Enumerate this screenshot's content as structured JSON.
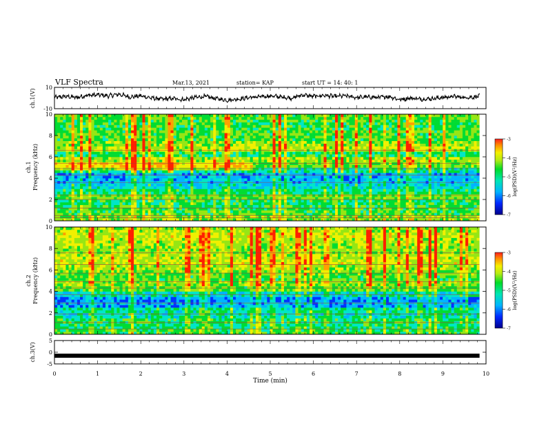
{
  "header": {
    "title": "VLF Spectra",
    "date": "Mar.13, 2021",
    "station": "station= KAP",
    "start": "start  UT =   14: 40: 1"
  },
  "colors": {
    "spectrogram_palette": [
      "#0a0a8c",
      "#0033ff",
      "#00b4ff",
      "#00e6c8",
      "#00dc32",
      "#96e614",
      "#f0f000",
      "#ffa000",
      "#ff2000"
    ],
    "trace": "#000000",
    "background": "#ffffff"
  },
  "chart_data": [
    {
      "id": "ch1-waveform",
      "type": "line",
      "ylabel": "ch.1(V)",
      "ylim": [
        -10,
        10
      ],
      "y_ticks": [
        "10",
        "-10"
      ],
      "xlim": [
        0,
        10
      ],
      "series": [
        {
          "x": [
            0,
            0.25,
            0.5,
            0.75,
            1.0,
            1.25,
            1.5,
            1.75,
            2.0,
            2.25,
            2.5,
            2.75,
            3.0,
            3.25,
            3.5,
            3.75,
            4.0,
            4.25,
            4.5,
            4.75,
            5.0,
            5.25,
            5.5,
            5.75,
            6.0,
            6.25,
            6.5,
            6.75,
            7.0,
            7.25,
            7.5,
            7.75,
            8.0,
            8.25,
            8.5,
            8.75,
            9.0,
            9.25,
            9.5,
            9.75,
            9.85
          ],
          "values": [
            0.5,
            1.5,
            0.5,
            2.5,
            3.0,
            2.0,
            3.5,
            1.0,
            2.0,
            0.0,
            -1.0,
            -0.5,
            -1.5,
            0.5,
            1.5,
            -0.5,
            -2.0,
            -1.0,
            0.5,
            1.0,
            2.0,
            1.0,
            0.0,
            3.0,
            1.5,
            2.5,
            1.5,
            2.0,
            0.5,
            1.0,
            0.5,
            1.5,
            -1.5,
            0.0,
            -1.0,
            -0.5,
            0.5,
            1.5,
            0.5,
            1.0,
            2.0
          ]
        }
      ]
    },
    {
      "id": "ch1-spectrogram",
      "type": "heatmap",
      "ylabel": "ch.1\nFrequency (kHz)",
      "ylim": [
        0,
        10
      ],
      "y_ticks": [
        "0",
        "2",
        "4",
        "6",
        "8",
        "10"
      ],
      "xlim": [
        0,
        9.85
      ],
      "colorbar": {
        "label": "log(PSD)(V²/Hz)",
        "range": [
          -7,
          -3
        ],
        "ticks": [
          "-3",
          "-4",
          "-5",
          "-6",
          "-7"
        ]
      },
      "frequency_bands_khz": [
        0,
        0.5,
        1.0,
        1.5,
        2.0,
        2.5,
        3.0,
        3.5,
        4.0,
        4.5,
        5.0,
        5.5,
        6.0,
        6.5,
        7.0,
        7.5,
        8.0,
        8.5,
        9.0,
        9.5
      ],
      "mean_log_psd": [
        -4.6,
        -4.9,
        -5.0,
        -5.1,
        -4.8,
        -5.2,
        -5.6,
        -5.8,
        -5.9,
        -5.3,
        -4.7,
        -4.5,
        -5.1,
        -4.4,
        -4.5,
        -4.9,
        -4.8,
        -5.0,
        -4.9,
        -4.8
      ]
    },
    {
      "id": "ch2-spectrogram",
      "type": "heatmap",
      "ylabel": "ch.2\nFrequency (kHz)",
      "ylim": [
        0,
        10
      ],
      "y_ticks": [
        "0",
        "2",
        "4",
        "6",
        "8",
        "10"
      ],
      "xlim": [
        0,
        9.85
      ],
      "colorbar": {
        "label": "log(PSD)(V²/Hz)",
        "range": [
          -7,
          -3
        ],
        "ticks": [
          "-3",
          "-4",
          "-5",
          "-6",
          "-7"
        ]
      },
      "frequency_bands_khz": [
        0,
        0.5,
        1.0,
        1.5,
        2.0,
        2.5,
        3.0,
        3.5,
        4.0,
        4.5,
        5.0,
        5.5,
        6.0,
        6.5,
        7.0,
        7.5,
        8.0,
        8.5,
        9.0,
        9.5
      ],
      "mean_log_psd": [
        -5.0,
        -5.2,
        -5.1,
        -5.4,
        -5.3,
        -5.9,
        -6.0,
        -5.5,
        -4.8,
        -4.6,
        -4.9,
        -4.7,
        -4.5,
        -4.3,
        -4.4,
        -4.6,
        -4.5,
        -4.4,
        -4.3,
        -4.5
      ]
    },
    {
      "id": "ch3-waveform",
      "type": "line",
      "ylabel": "ch.3(V)",
      "ylim": [
        -5,
        5
      ],
      "y_ticks": [
        "5",
        "0",
        "-5"
      ],
      "xlim": [
        0,
        10
      ],
      "xlabel": "Time  (min)",
      "x_ticks": [
        "0",
        "1",
        "2",
        "3",
        "4",
        "5",
        "6",
        "7",
        "8",
        "9",
        "10"
      ],
      "series": [
        {
          "x": [
            0,
            9.85
          ],
          "values": [
            -1.5,
            -1.5
          ]
        }
      ]
    }
  ]
}
